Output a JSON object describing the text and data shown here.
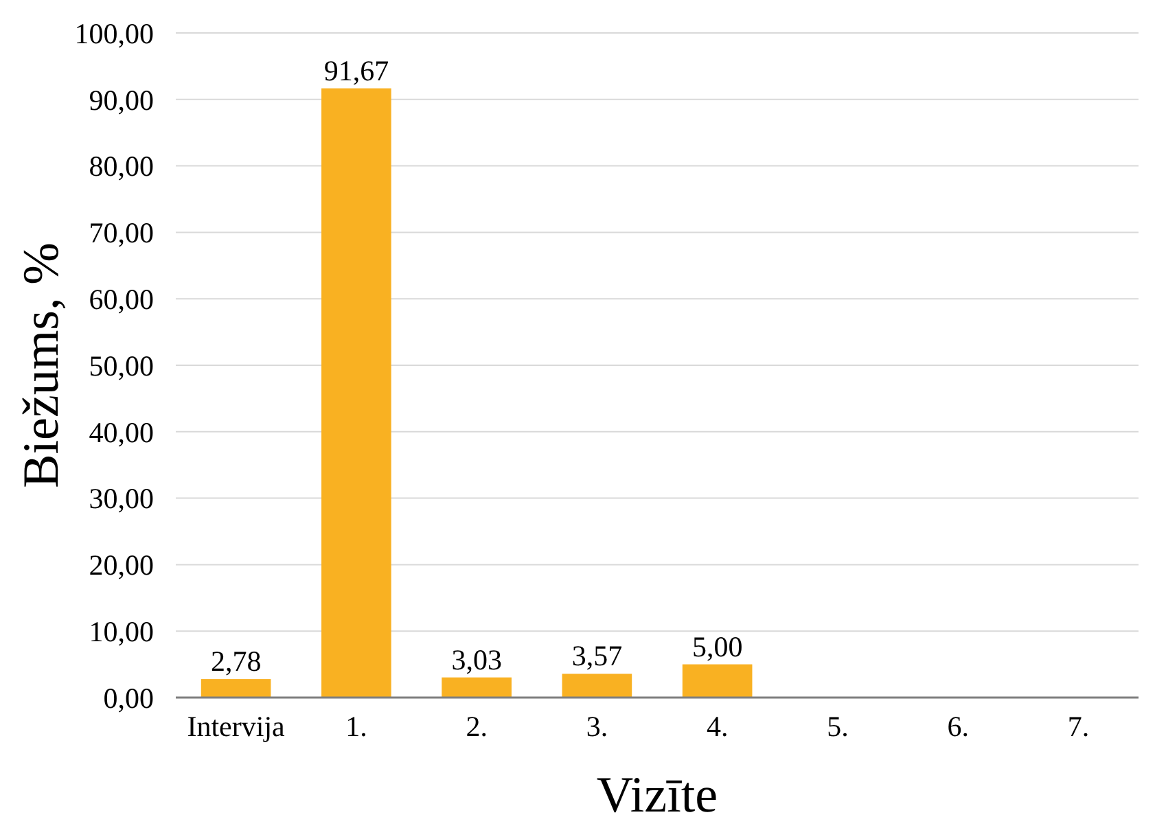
{
  "chart_data": {
    "type": "bar",
    "xlabel": "Vizīte",
    "ylabel": "Biežums, %",
    "categories": [
      "Intervija",
      "1.",
      "2.",
      "3.",
      "4.",
      "5.",
      "6.",
      "7."
    ],
    "values": [
      2.78,
      91.67,
      3.03,
      3.57,
      5.0,
      0,
      0,
      0
    ],
    "value_labels": [
      "2,78",
      "91,67",
      "3,03",
      "3,57",
      "5,00",
      null,
      null,
      null
    ],
    "color": "#f9b122",
    "ylim": [
      0,
      100
    ],
    "yticks": [
      {
        "value": 0,
        "label": "0,00"
      },
      {
        "value": 10,
        "label": "10,00"
      },
      {
        "value": 20,
        "label": "20,00"
      },
      {
        "value": 30,
        "label": "30,00"
      },
      {
        "value": 40,
        "label": "40,00"
      },
      {
        "value": 50,
        "label": "50,00"
      },
      {
        "value": 60,
        "label": "60,00"
      },
      {
        "value": 70,
        "label": "70,00"
      },
      {
        "value": 80,
        "label": "80,00"
      },
      {
        "value": 90,
        "label": "90,00"
      },
      {
        "value": 100,
        "label": "100,00"
      }
    ],
    "grid": "y"
  }
}
